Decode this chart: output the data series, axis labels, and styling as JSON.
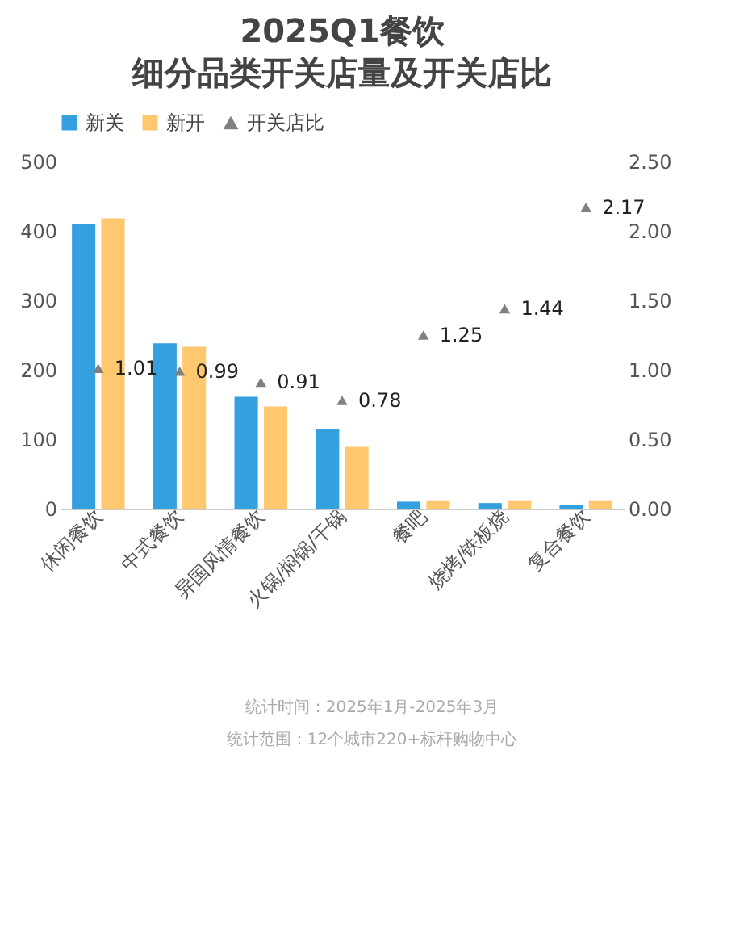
{
  "chart_data": {
    "type": "bar",
    "title": "2025Q1餐饮",
    "subtitle": "细分品类开关店量及开关店比",
    "categories": [
      "休闲餐饮",
      "中式餐饮",
      "异国风情餐饮",
      "火锅/焖锅/干锅",
      "餐吧",
      "烧烤/铁板烧",
      "复合餐饮"
    ],
    "series": [
      {
        "name": "新关",
        "color": "#35a0e0",
        "values": [
          410,
          238,
          161,
          115,
          10,
          8,
          5
        ]
      },
      {
        "name": "新开",
        "color": "#ffc86e",
        "values": [
          418,
          233,
          147,
          89,
          12,
          12,
          12
        ]
      },
      {
        "name": "开关店比",
        "type": "scatter",
        "axis": "y2",
        "marker": "triangle",
        "color": "#808080",
        "values": [
          1.01,
          0.99,
          0.91,
          0.78,
          1.25,
          1.44,
          2.17
        ],
        "value_labels": [
          "1.01",
          "0.99",
          "0.91",
          "0.78",
          "1.25",
          "1.44",
          "2.17"
        ]
      }
    ],
    "ylim": [
      0,
      500
    ],
    "yticks": [
      0,
      100,
      200,
      300,
      400,
      500
    ],
    "y2lim": [
      0,
      2.5
    ],
    "y2ticks": [
      {
        "value": 0,
        "label": "0.00"
      },
      {
        "value": 0.5,
        "label": "0.50"
      },
      {
        "value": 1,
        "label": "1.00"
      },
      {
        "value": 1.5,
        "label": "1.50"
      },
      {
        "value": 2,
        "label": "2.00"
      },
      {
        "value": 2.5,
        "label": "2.50"
      }
    ],
    "grid": false,
    "legend": "top",
    "annotations": [
      "统计时间：2025年1月-2025年3月",
      "统计范围：12个城市220+标杆购物中心"
    ]
  }
}
